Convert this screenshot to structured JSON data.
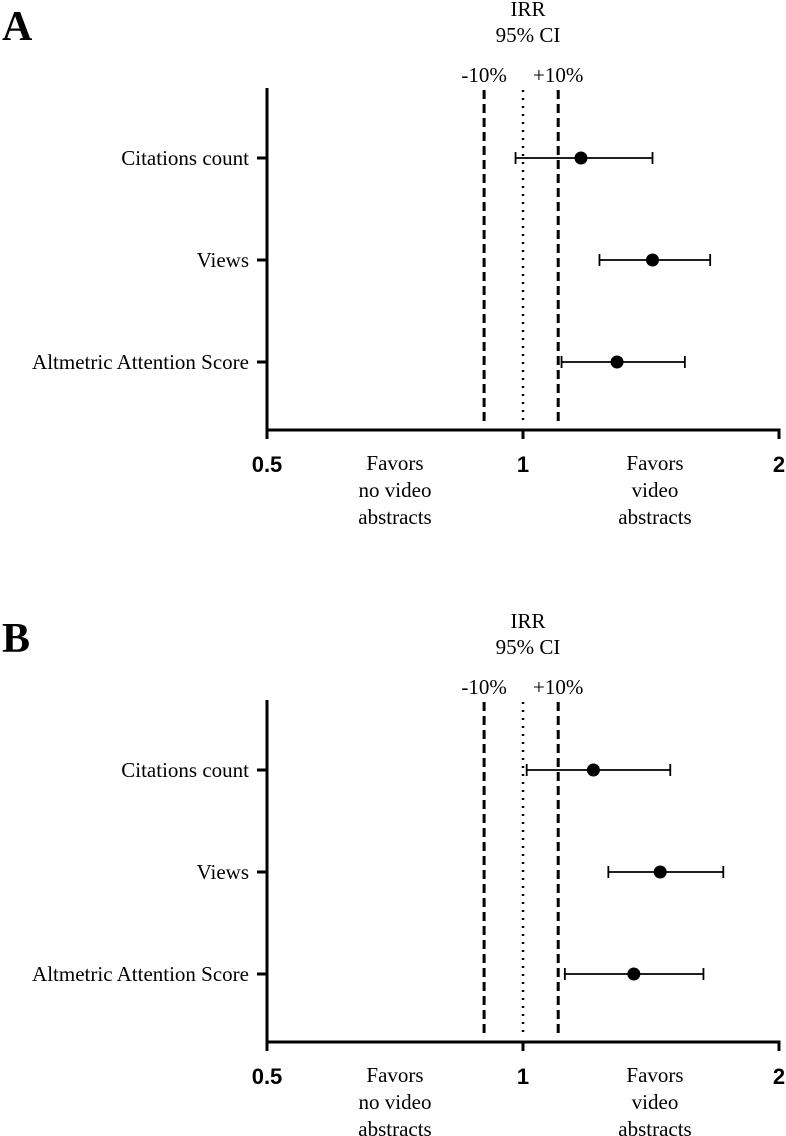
{
  "chart_data": [
    {
      "type": "scatter",
      "panel_label": "A",
      "header": [
        "IRR",
        "95% CI"
      ],
      "x_scale": "log2",
      "xlim": [
        0.5,
        2
      ],
      "xticks": [
        0.5,
        1,
        2
      ],
      "xtick_labels": [
        "0.5",
        "1",
        "2"
      ],
      "reference_lines": [
        {
          "label": "-10%",
          "x": 0.9,
          "style": "dashed"
        },
        {
          "label": "",
          "x": 1.0,
          "style": "dotted"
        },
        {
          "label": "+10%",
          "x": 1.1,
          "style": "dashed"
        }
      ],
      "categories": [
        "Citations count",
        "Views",
        "Altmetric Attention Score"
      ],
      "estimates": [
        1.17,
        1.42,
        1.29
      ],
      "ci_lower": [
        0.98,
        1.23,
        1.11
      ],
      "ci_upper": [
        1.42,
        1.66,
        1.55
      ],
      "annotations": {
        "left": [
          "Favors",
          "no video",
          "abstracts"
        ],
        "right": [
          "Favors",
          "video",
          "abstracts"
        ]
      }
    },
    {
      "type": "scatter",
      "panel_label": "B",
      "header": [
        "IRR",
        "95% CI"
      ],
      "x_scale": "log2",
      "xlim": [
        0.5,
        2
      ],
      "xticks": [
        0.5,
        1,
        2
      ],
      "xtick_labels": [
        "0.5",
        "1",
        "2"
      ],
      "reference_lines": [
        {
          "label": "-10%",
          "x": 0.9,
          "style": "dashed"
        },
        {
          "label": "",
          "x": 1.0,
          "style": "dotted"
        },
        {
          "label": "+10%",
          "x": 1.1,
          "style": "dashed"
        }
      ],
      "categories": [
        "Citations count",
        "Views",
        "Altmetric Attention Score"
      ],
      "estimates": [
        1.21,
        1.45,
        1.35
      ],
      "ci_lower": [
        1.01,
        1.26,
        1.12
      ],
      "ci_upper": [
        1.49,
        1.72,
        1.63
      ],
      "annotations": {
        "left": [
          "Favors",
          "no video",
          "abstracts"
        ],
        "right": [
          "Favors",
          "video",
          "abstracts"
        ]
      }
    }
  ]
}
